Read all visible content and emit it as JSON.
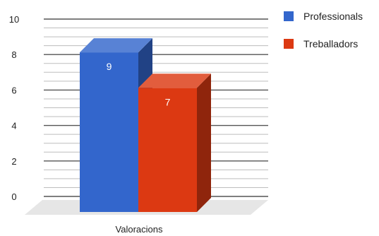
{
  "chart_data": {
    "type": "bar",
    "categories": [
      "Valoracions"
    ],
    "series": [
      {
        "name": "Professionals",
        "values": [
          9
        ],
        "color": "#3366cc"
      },
      {
        "name": "Treballadors",
        "values": [
          7
        ],
        "color": "#dc3912"
      }
    ],
    "ylim": [
      0,
      10
    ],
    "yticks": [
      0,
      2,
      4,
      6,
      8,
      10
    ],
    "grid": true,
    "legend_position": "right",
    "three_d": true
  }
}
